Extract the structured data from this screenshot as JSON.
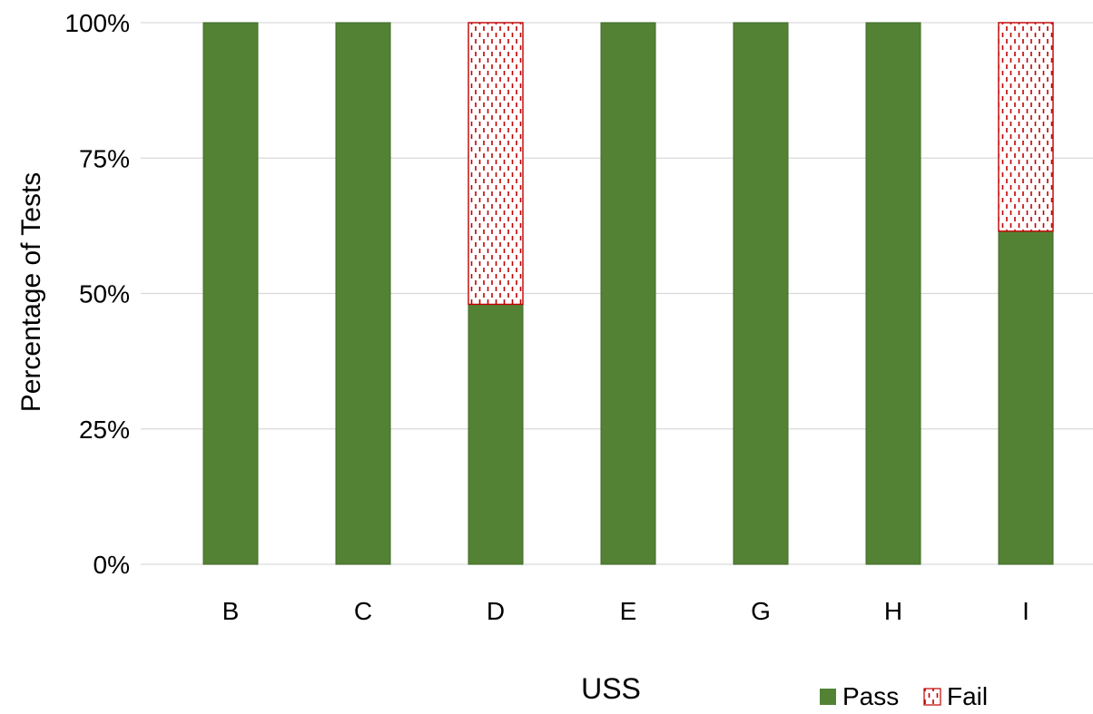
{
  "chart_data": {
    "type": "bar",
    "stacked": true,
    "categories": [
      "B",
      "C",
      "D",
      "E",
      "G",
      "H",
      "I"
    ],
    "series": [
      {
        "name": "Pass",
        "values": [
          100,
          100,
          48,
          100,
          100,
          100,
          61.5
        ],
        "color": "#548235",
        "pattern": "solid"
      },
      {
        "name": "Fail",
        "values": [
          0,
          0,
          52,
          0,
          0,
          0,
          38.5
        ],
        "color": "#C00000",
        "pattern": "dotted-hatch"
      }
    ],
    "xlabel": "USS",
    "ylabel": "Percentage of Tests",
    "ylim": [
      0,
      100
    ],
    "yticks": [
      0,
      25,
      50,
      75,
      100
    ],
    "ytick_labels": [
      "0%",
      "25%",
      "50%",
      "75%",
      "100%"
    ],
    "grid": true,
    "legend_position": "bottom-right"
  }
}
